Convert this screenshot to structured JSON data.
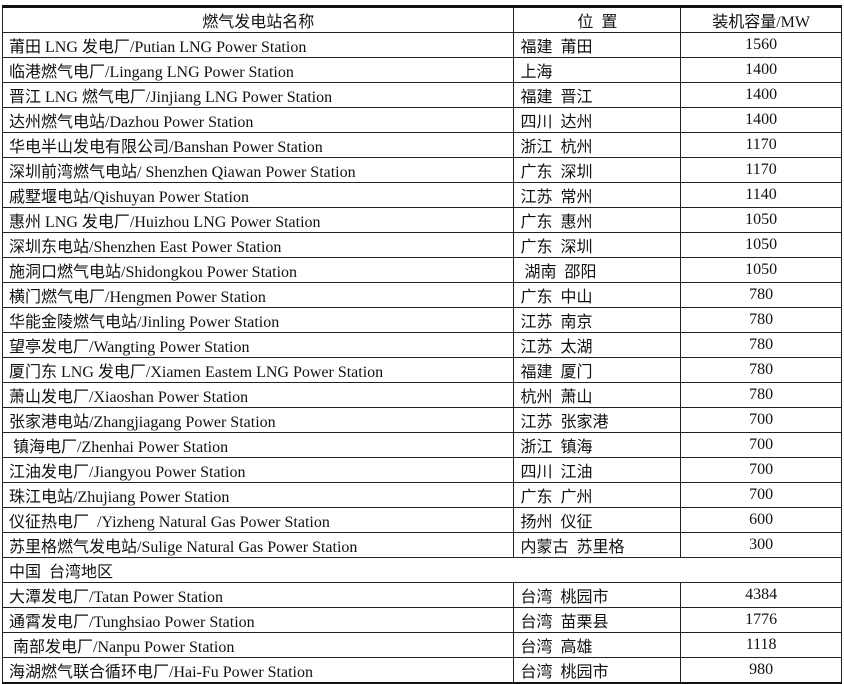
{
  "table": {
    "headers": [
      "燃气发电站名称",
      "位  置",
      "装机容量/MW"
    ],
    "rows": [
      [
        "莆田 LNG 发电厂/Putian LNG Power Station",
        "福建  莆田",
        "1560"
      ],
      [
        "临港燃气电厂/Lingang LNG Power Station",
        "上海",
        "1400"
      ],
      [
        "晋江 LNG 燃气电厂/Jinjiang LNG Power Station",
        "福建  晋江",
        "1400"
      ],
      [
        "达州燃气电站/Dazhou Power Station",
        "四川  达州",
        "1400"
      ],
      [
        "华电半山发电有限公司/Banshan Power Station",
        "浙江  杭州",
        "1170"
      ],
      [
        "深圳前湾燃气电站/ Shenzhen Qiawan Power Station",
        "广东  深圳",
        "1170"
      ],
      [
        "戚墅堰电站/Qishuyan Power Station",
        "江苏  常州",
        "1140"
      ],
      [
        "惠州 LNG 发电厂/Huizhou LNG Power Station",
        "广东  惠州",
        "1050"
      ],
      [
        "深圳东电站/Shenzhen East Power Station",
        "广东  深圳",
        "1050"
      ],
      [
        "施洞口燃气电站/Shidongkou Power Station",
        " 湖南  邵阳",
        "1050"
      ],
      [
        "横门燃气电厂/Hengmen Power Station",
        "广东  中山",
        "780"
      ],
      [
        "华能金陵燃气电站/Jinling Power Station",
        "江苏  南京",
        "780"
      ],
      [
        "望亭发电厂/Wangting Power Station",
        "江苏  太湖",
        "780"
      ],
      [
        "厦门东 LNG 发电厂/Xiamen Eastem LNG Power Station",
        "福建  厦门",
        "780"
      ],
      [
        "萧山发电厂/Xiaoshan Power Station",
        "杭州  萧山",
        "780"
      ],
      [
        "张家港电站/Zhangjiagang Power Station",
        "江苏  张家港",
        "700"
      ],
      [
        " 镇海电厂/Zhenhai Power Station",
        "浙江  镇海",
        "700"
      ],
      [
        "江油发电厂/Jiangyou Power Station",
        "四川  江油",
        "700"
      ],
      [
        "珠江电站/Zhujiang Power Station",
        "广东  广州",
        "700"
      ],
      [
        "仪征热电厂  /Yizheng Natural Gas Power Station",
        "扬州  仪征",
        "600"
      ],
      [
        "苏里格燃气发电站/Sulige Natural Gas Power Station",
        "内蒙古  苏里格",
        "300"
      ]
    ],
    "section_label": "中国  台湾地区",
    "section_rows": [
      [
        "大潭发电厂/Tatan Power Station",
        "台湾  桃园市",
        "4384"
      ],
      [
        "通霄发电厂/Tunghsiao Power Station",
        "台湾  苗栗县",
        "1776"
      ],
      [
        " 南部发电厂/Nanpu Power Station",
        "台湾  高雄",
        "1118"
      ],
      [
        "海湖燃气联合循环电厂/Hai-Fu Power Station",
        "台湾  桃园市",
        "980"
      ]
    ]
  }
}
